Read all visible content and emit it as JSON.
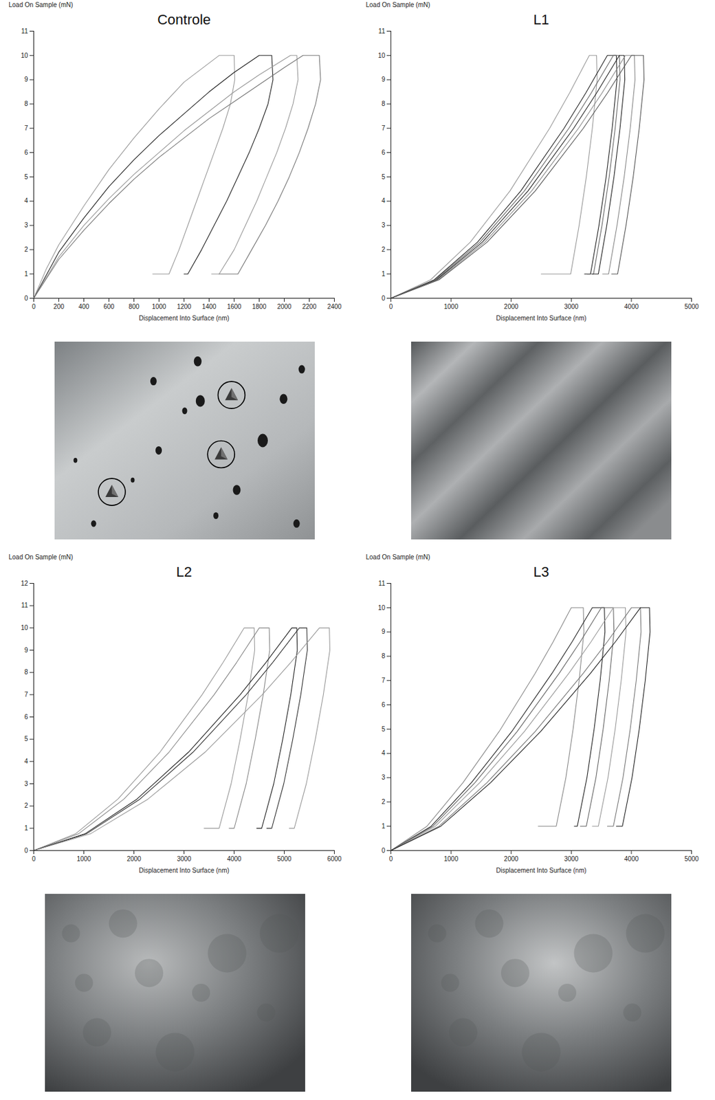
{
  "chart_data": [
    {
      "type": "line",
      "title": "Controle",
      "x_label": "Displacement Into Surface (nm)",
      "y_label": "Load On Sample (mN)",
      "xlim": [
        0,
        2400
      ],
      "ylim": [
        0,
        11
      ],
      "xticks": [
        0,
        200,
        400,
        600,
        800,
        1000,
        1200,
        1400,
        1600,
        1800,
        2000,
        2200,
        2400
      ],
      "yticks": [
        0,
        1,
        2,
        3,
        4,
        5,
        6,
        7,
        8,
        9,
        10,
        11
      ],
      "grid": false,
      "series": [
        {
          "color": "#999999",
          "x": [
            0,
            100,
            200,
            400,
            600,
            800,
            1000,
            1200,
            1480,
            1600,
            1605,
            1570,
            1510,
            1440,
            1370,
            1300,
            1230,
            1160,
            1080,
            950
          ],
          "y": [
            0,
            1.2,
            2.2,
            3.8,
            5.3,
            6.6,
            7.8,
            8.9,
            10,
            10,
            9,
            8,
            7,
            6,
            5,
            4,
            3,
            2,
            1,
            1
          ]
        },
        {
          "color": "#222222",
          "x": [
            0,
            200,
            400,
            600,
            800,
            1000,
            1200,
            1400,
            1600,
            1800,
            1900,
            1910,
            1870,
            1800,
            1720,
            1630,
            1540,
            1440,
            1340,
            1230,
            1200
          ],
          "y": [
            0,
            1.9,
            3.3,
            4.6,
            5.7,
            6.7,
            7.6,
            8.5,
            9.3,
            10,
            10,
            9,
            8,
            7,
            6,
            5,
            4,
            3,
            2,
            1,
            1
          ]
        },
        {
          "color": "#999999",
          "x": [
            0,
            200,
            400,
            600,
            800,
            1000,
            1200,
            1400,
            1600,
            1800,
            2050,
            2100,
            2110,
            2070,
            2010,
            1940,
            1860,
            1780,
            1690,
            1600,
            1480,
            1420
          ],
          "y": [
            0,
            1.7,
            3.0,
            4.1,
            5.1,
            6.0,
            6.9,
            7.7,
            8.5,
            9.2,
            10,
            10,
            9,
            8,
            7,
            6,
            5,
            4,
            3,
            2,
            1,
            1
          ]
        },
        {
          "color": "#777777",
          "x": [
            0,
            200,
            400,
            600,
            800,
            1000,
            1200,
            1400,
            1600,
            1800,
            2000,
            2150,
            2280,
            2290,
            2250,
            2190,
            2120,
            2040,
            1950,
            1850,
            1740,
            1630,
            1480
          ],
          "y": [
            0,
            1.6,
            2.8,
            3.9,
            4.9,
            5.8,
            6.6,
            7.4,
            8.1,
            8.8,
            9.5,
            10,
            10,
            9,
            8,
            7,
            6,
            5,
            4,
            3,
            2,
            1,
            1
          ]
        }
      ]
    },
    {
      "type": "line",
      "title": "L1",
      "x_label": "Displacement Into Surface (nm)",
      "y_label": "Load On Sample (mN)",
      "xlim": [
        0,
        5000
      ],
      "ylim": [
        0,
        11
      ],
      "xticks": [
        0,
        1000,
        2000,
        3000,
        4000,
        5000
      ],
      "yticks": [
        0,
        1,
        2,
        3,
        4,
        5,
        6,
        7,
        8,
        9,
        10,
        11
      ],
      "grid": false,
      "series": [
        {
          "color": "#999999",
          "x": [
            0,
            660,
            1320,
            1980,
            2640,
            2970,
            3300,
            3420,
            3430,
            3350,
            3250,
            3130,
            2990,
            2500
          ],
          "y": [
            0,
            0.76,
            2.31,
            4.42,
            7,
            8.45,
            10,
            10,
            9,
            7,
            5,
            3,
            1,
            1
          ]
        },
        {
          "color": "#222222",
          "x": [
            0,
            720,
            1440,
            2160,
            2880,
            3240,
            3600,
            3750,
            3760,
            3680,
            3580,
            3460,
            3320,
            3220
          ],
          "y": [
            0,
            0.76,
            2.31,
            4.42,
            7,
            8.45,
            10,
            10,
            9,
            7,
            5,
            3,
            1,
            1
          ]
        },
        {
          "color": "#666666",
          "x": [
            0,
            740,
            1480,
            2220,
            2960,
            3330,
            3700,
            3800,
            3810,
            3730,
            3630,
            3510,
            3370,
            3270
          ],
          "y": [
            0,
            0.76,
            2.31,
            4.42,
            7,
            8.45,
            10,
            10,
            9,
            7,
            5,
            3,
            1,
            1
          ]
        },
        {
          "color": "#222222",
          "x": [
            0,
            760,
            1520,
            2280,
            3040,
            3420,
            3800,
            3880,
            3890,
            3810,
            3710,
            3590,
            3450,
            3350
          ],
          "y": [
            0,
            0.76,
            2.31,
            4.42,
            7,
            8.45,
            10,
            10,
            9,
            7,
            5,
            3,
            1,
            1
          ]
        },
        {
          "color": "#888888",
          "x": [
            0,
            780,
            1560,
            2340,
            3120,
            3510,
            3900,
            4050,
            4060,
            3980,
            3880,
            3760,
            3620,
            3520
          ],
          "y": [
            0,
            0.76,
            2.31,
            4.42,
            7,
            8.45,
            10,
            10,
            9,
            7,
            5,
            3,
            1,
            1
          ]
        },
        {
          "color": "#555555",
          "x": [
            0,
            800,
            1600,
            2400,
            3200,
            3600,
            4000,
            4200,
            4210,
            4130,
            4030,
            3910,
            3770,
            3670
          ],
          "y": [
            0,
            0.76,
            2.31,
            4.42,
            7,
            8.45,
            10,
            10,
            9,
            7,
            5,
            3,
            1,
            1
          ]
        }
      ]
    },
    {
      "type": "line",
      "title": "L2",
      "x_label": "Displacement Into Surface (nm)",
      "y_label": "Load On Sample (mN)",
      "xlim": [
        0,
        6000
      ],
      "ylim": [
        0,
        12
      ],
      "xticks": [
        0,
        1000,
        2000,
        3000,
        4000,
        5000,
        6000
      ],
      "yticks": [
        0,
        1,
        2,
        3,
        4,
        5,
        6,
        7,
        8,
        9,
        10,
        11,
        12
      ],
      "grid": false,
      "series": [
        {
          "color": "#999999",
          "x": [
            0,
            840,
            1680,
            2520,
            3360,
            3780,
            4200,
            4400,
            4410,
            4280,
            4120,
            3940,
            3700,
            3400
          ],
          "y": [
            0,
            0.76,
            2.31,
            4.42,
            7,
            8.45,
            10,
            10,
            9,
            7,
            5,
            3,
            1,
            1
          ]
        },
        {
          "color": "#888888",
          "x": [
            0,
            900,
            1800,
            2700,
            3600,
            4050,
            4500,
            4700,
            4710,
            4580,
            4420,
            4240,
            4000,
            3900
          ],
          "y": [
            0,
            0.76,
            2.31,
            4.42,
            7,
            8.45,
            10,
            10,
            9,
            7,
            5,
            3,
            1,
            1
          ]
        },
        {
          "color": "#222222",
          "x": [
            0,
            1030,
            2060,
            3090,
            4120,
            4635,
            5150,
            5250,
            5260,
            5130,
            4970,
            4790,
            4550,
            4450
          ],
          "y": [
            0,
            0.76,
            2.31,
            4.42,
            7,
            8.45,
            10,
            10,
            9,
            7,
            5,
            3,
            1,
            1
          ]
        },
        {
          "color": "#333333",
          "x": [
            0,
            1060,
            2120,
            3180,
            4240,
            4770,
            5300,
            5450,
            5460,
            5330,
            5170,
            4990,
            4750,
            4650
          ],
          "y": [
            0,
            0.76,
            2.31,
            4.42,
            7,
            8.45,
            10,
            10,
            9,
            7,
            5,
            3,
            1,
            1
          ]
        },
        {
          "color": "#999999",
          "x": [
            0,
            1140,
            2280,
            3420,
            4560,
            5130,
            5700,
            5900,
            5910,
            5780,
            5620,
            5440,
            5200,
            5100
          ],
          "y": [
            0,
            0.76,
            2.31,
            4.42,
            7,
            8.45,
            10,
            10,
            9,
            7,
            5,
            3,
            1,
            1
          ]
        }
      ]
    },
    {
      "type": "line",
      "title": "L3",
      "x_label": "Displacement Into Surface (nm)",
      "y_label": "Load On Sample (mN)",
      "xlim": [
        0,
        5000
      ],
      "ylim": [
        0,
        11
      ],
      "xticks": [
        0,
        1000,
        2000,
        3000,
        4000,
        5000
      ],
      "yticks": [
        0,
        1,
        2,
        3,
        4,
        5,
        6,
        7,
        8,
        9,
        10,
        11
      ],
      "grid": false,
      "series": [
        {
          "color": "#888888",
          "x": [
            0,
            600,
            1200,
            1800,
            2400,
            2700,
            3000,
            3200,
            3210,
            3130,
            3030,
            2910,
            2750,
            2450
          ],
          "y": [
            0,
            1,
            2.8,
            4.9,
            7.3,
            8.6,
            10,
            10,
            9,
            7,
            5,
            3,
            1,
            1
          ]
        },
        {
          "color": "#222222",
          "x": [
            0,
            670,
            1340,
            2010,
            2680,
            3015,
            3350,
            3550,
            3560,
            3480,
            3380,
            3260,
            3100,
            3050
          ],
          "y": [
            0,
            1,
            2.8,
            4.9,
            7.3,
            8.6,
            10,
            10,
            9,
            7,
            5,
            3,
            1,
            1
          ]
        },
        {
          "color": "#666666",
          "x": [
            0,
            700,
            1400,
            2100,
            2800,
            3150,
            3500,
            3700,
            3710,
            3630,
            3530,
            3410,
            3250,
            3150
          ],
          "y": [
            0,
            1,
            2.8,
            4.9,
            7.3,
            8.6,
            10,
            10,
            9,
            7,
            5,
            3,
            1,
            1
          ]
        },
        {
          "color": "#999999",
          "x": [
            0,
            740,
            1480,
            2220,
            2960,
            3330,
            3700,
            3900,
            3910,
            3830,
            3730,
            3610,
            3450,
            3350
          ],
          "y": [
            0,
            1,
            2.8,
            4.9,
            7.3,
            8.6,
            10,
            10,
            9,
            7,
            5,
            3,
            1,
            1
          ]
        },
        {
          "color": "#777777",
          "x": [
            0,
            800,
            1600,
            2400,
            3200,
            3600,
            4000,
            4150,
            4160,
            4080,
            3980,
            3860,
            3700,
            3600
          ],
          "y": [
            0,
            1,
            2.8,
            4.9,
            7.3,
            8.6,
            10,
            10,
            9,
            7,
            5,
            3,
            1,
            1
          ]
        },
        {
          "color": "#222222",
          "x": [
            0,
            830,
            1660,
            2490,
            3320,
            3735,
            4150,
            4300,
            4310,
            4230,
            4130,
            4010,
            3850,
            3750
          ],
          "y": [
            0,
            1,
            2.8,
            4.9,
            7.3,
            8.6,
            10,
            10,
            9,
            7,
            5,
            3,
            1,
            1
          ]
        }
      ]
    }
  ]
}
